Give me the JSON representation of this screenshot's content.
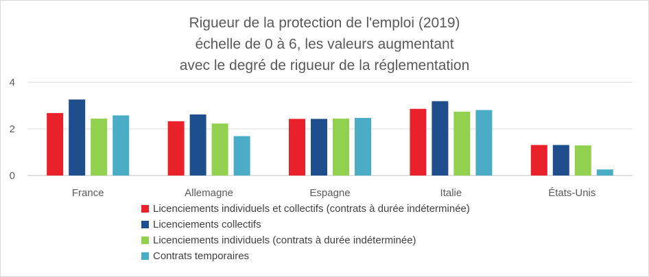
{
  "chart_data": {
    "type": "bar",
    "title_lines": [
      "Rigueur de la protection de l'emploi (2019)",
      "échelle de 0 à 6, les valeurs augmentant",
      "avec le degré de rigueur de la réglementation"
    ],
    "categories": [
      "France",
      "Allemagne",
      "Espagne",
      "Italie",
      "États-Unis"
    ],
    "series": [
      {
        "name": "Licenciements individuels et collectifs (contrats à durée indéterminée)",
        "color": "#e8212a",
        "values": [
          2.68,
          2.33,
          2.43,
          2.86,
          1.31
        ]
      },
      {
        "name": "Licenciements collectifs",
        "color": "#1f4e8c",
        "values": [
          3.26,
          2.62,
          2.43,
          3.19,
          1.31
        ]
      },
      {
        "name": "Licenciements individuels (contrats à durée indéterminée)",
        "color": "#92d050",
        "values": [
          2.44,
          2.23,
          2.44,
          2.74,
          1.29
        ]
      },
      {
        "name": "Contrats temporaires",
        "color": "#4bacc6",
        "values": [
          2.58,
          1.69,
          2.47,
          2.81,
          0.26
        ]
      }
    ],
    "yticks": [
      0,
      2,
      4
    ],
    "ylim": [
      0,
      4
    ],
    "grid": true,
    "legend_position": "bottom"
  }
}
